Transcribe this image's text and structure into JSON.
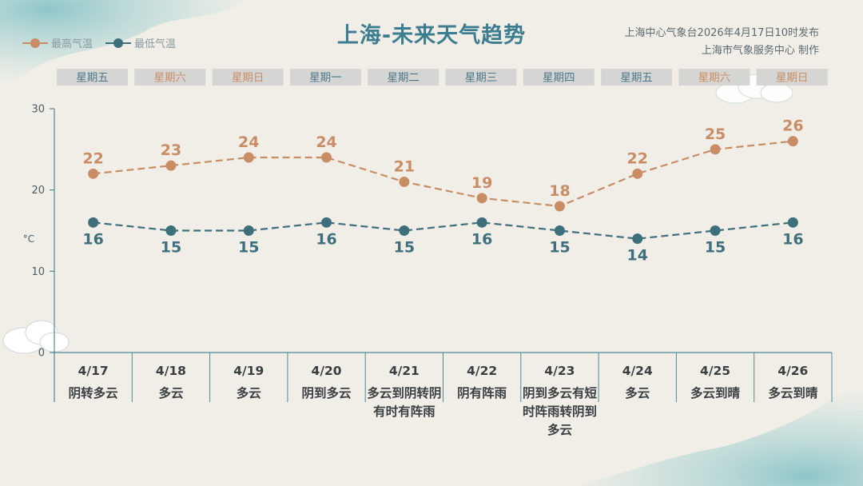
{
  "title": "上海-未来天气趋势",
  "source": {
    "line1": "上海中心气象台2026年4月17日10时发布",
    "line2": "上海市气象服务中心  制作"
  },
  "legend": {
    "high": "最高气温",
    "low": "最低气温"
  },
  "colors": {
    "high": "#c98d66",
    "low": "#3e6f7c",
    "weekday": "#4d7888",
    "weekend": "#c98d66",
    "axis": "#4d8a99",
    "title": "#3c7d8f"
  },
  "chart_data": {
    "type": "line",
    "weekdays": [
      "星期五",
      "星期六",
      "星期日",
      "星期一",
      "星期二",
      "星期三",
      "星期四",
      "星期五",
      "星期六",
      "星期日"
    ],
    "weekend_flags": [
      false,
      true,
      true,
      false,
      false,
      false,
      false,
      false,
      true,
      true
    ],
    "categories": [
      "4/17",
      "4/18",
      "4/19",
      "4/20",
      "4/21",
      "4/22",
      "4/23",
      "4/24",
      "4/25",
      "4/26"
    ],
    "weather": [
      "阴转多云",
      "多云",
      "多云",
      "阴到多云",
      "多云到阴转阴有时有阵雨",
      "阴有阵雨",
      "阴到多云有短时阵雨转阴到多云",
      "多云",
      "多云到晴",
      "多云到晴"
    ],
    "series": [
      {
        "name": "最高气温",
        "values": [
          22,
          23,
          24,
          24,
          21,
          19,
          18,
          22,
          25,
          26
        ]
      },
      {
        "name": "最低气温",
        "values": [
          16,
          15,
          15,
          16,
          15,
          16,
          15,
          14,
          15,
          16
        ]
      }
    ],
    "ylabel": "°C",
    "ylim": [
      0,
      30
    ],
    "yticks": [
      0,
      10,
      20,
      30
    ]
  }
}
